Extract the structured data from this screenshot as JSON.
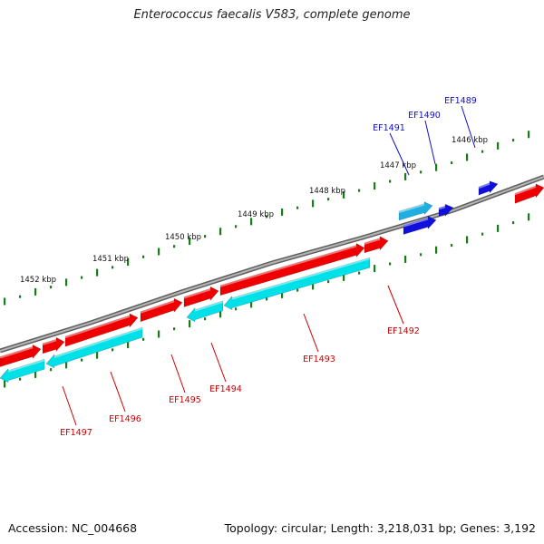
{
  "title": "Enterococcus faecalis V583, complete genome",
  "footer": {
    "accession": "Accession: NC_004668",
    "topology": "Topology: circular; Length: 3,218,031 bp; Genes: 3,192"
  },
  "colors": {
    "backbone": "#808080",
    "ticks": "#1a7a1a",
    "forward_cds": "#ee0000",
    "reverse_cds": "#00e0e8",
    "other_strand_gene": "#1010dd",
    "other_strand_gene_light": "#1eaee0",
    "label_red": "#cc0000",
    "label_blue": "#1010cc"
  },
  "ticks": [
    {
      "label": "1446 kbp"
    },
    {
      "label": "1447 kbp"
    },
    {
      "label": "1448 kbp"
    },
    {
      "label": "1449 kbp"
    },
    {
      "label": "1450 kbp"
    },
    {
      "label": "1451 kbp"
    },
    {
      "label": "1452 kbp"
    }
  ],
  "genes": [
    {
      "label": "EF1489",
      "color_key": "label_blue"
    },
    {
      "label": "EF1490",
      "color_key": "label_blue"
    },
    {
      "label": "EF1491",
      "color_key": "label_blue"
    },
    {
      "label": "EF1492",
      "color_key": "label_red"
    },
    {
      "label": "EF1493",
      "color_key": "label_red"
    },
    {
      "label": "EF1494",
      "color_key": "label_red"
    },
    {
      "label": "EF1495",
      "color_key": "label_red"
    },
    {
      "label": "EF1496",
      "color_key": "label_red"
    },
    {
      "label": "EF1497",
      "color_key": "label_red"
    }
  ]
}
